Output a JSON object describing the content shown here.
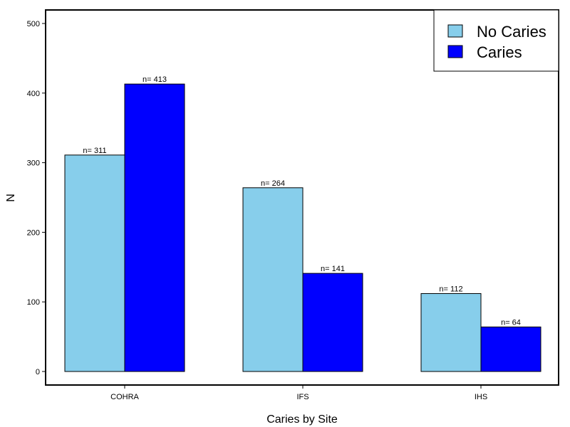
{
  "chart_data": {
    "type": "bar",
    "categories": [
      "COHRA",
      "IFS",
      "IHS"
    ],
    "series": [
      {
        "name": "No Caries",
        "values": [
          311,
          264,
          112
        ],
        "color": "#87CEEB",
        "labels": [
          "n= 311",
          "n= 264",
          "n= 112"
        ]
      },
      {
        "name": "Caries",
        "values": [
          413,
          141,
          64
        ],
        "color": "#0000FF",
        "labels": [
          "n= 413",
          "n= 141",
          "n= 64"
        ]
      }
    ],
    "xlabel": "Caries by Site",
    "ylabel": "N",
    "ylim": [
      0,
      500
    ],
    "yticks": [
      0,
      100,
      200,
      300,
      400,
      500
    ],
    "legend_position": "top-right",
    "grid": false
  }
}
